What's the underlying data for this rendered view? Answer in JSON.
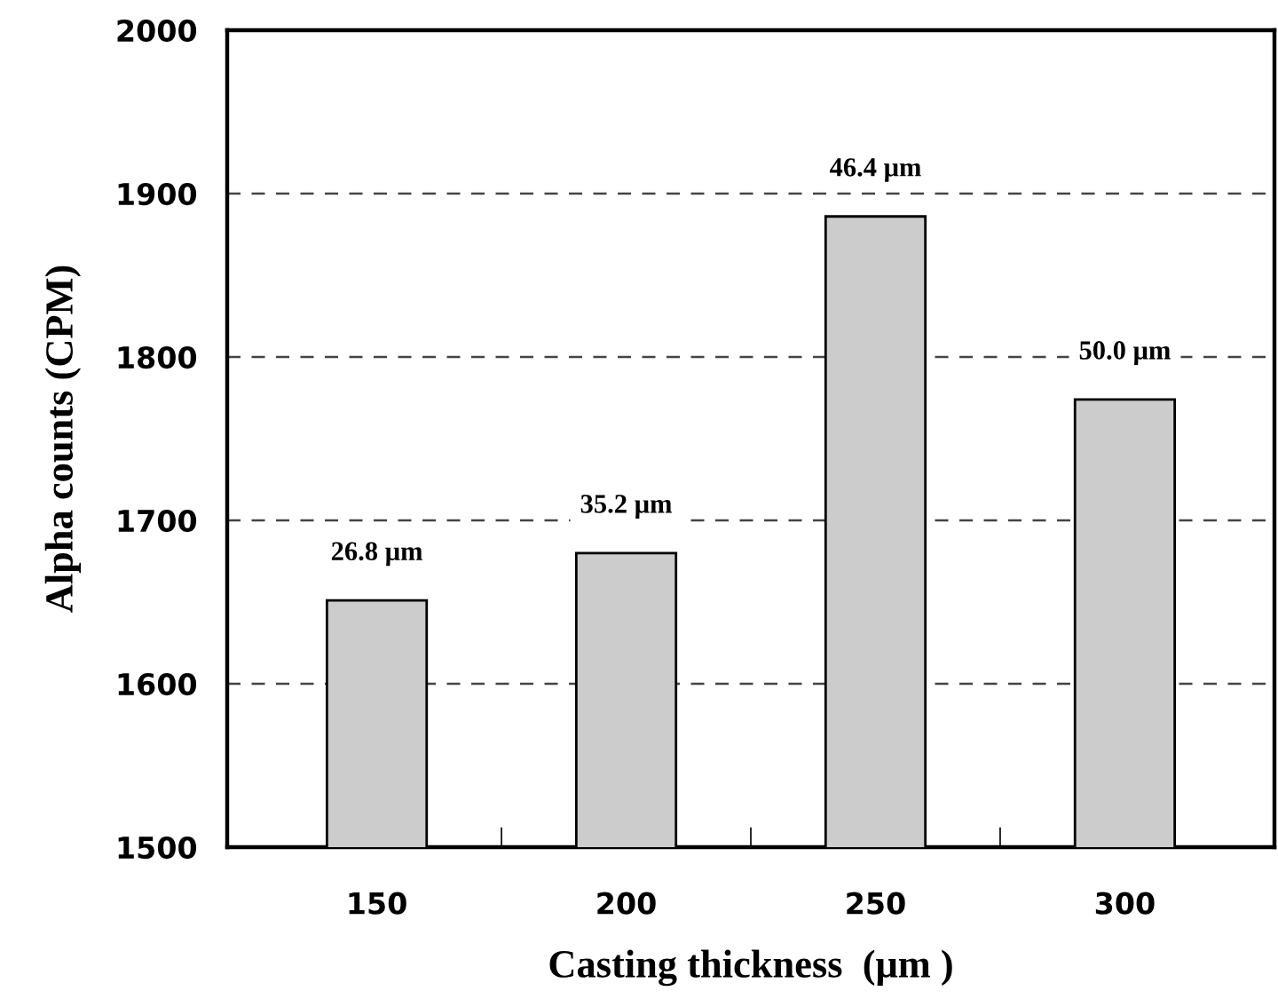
{
  "chart_data": {
    "type": "bar",
    "xlabel": "Casting thickness  (μm )",
    "ylabel": "Alpha counts (CPM)",
    "categories": [
      "150",
      "200",
      "250",
      "300"
    ],
    "series": [
      {
        "color": "#cccccc",
        "values": [
          1651,
          1680,
          1886,
          1774
        ]
      }
    ],
    "value_labels": [
      "26.8 μm",
      "35.2 μm",
      "46.4 μm",
      "50.0 μm"
    ],
    "ylim": [
      1500,
      2000
    ],
    "yticks": [
      1500,
      1600,
      1700,
      1800,
      1900,
      2000
    ],
    "grid": "y",
    "line_style": "dashed"
  }
}
